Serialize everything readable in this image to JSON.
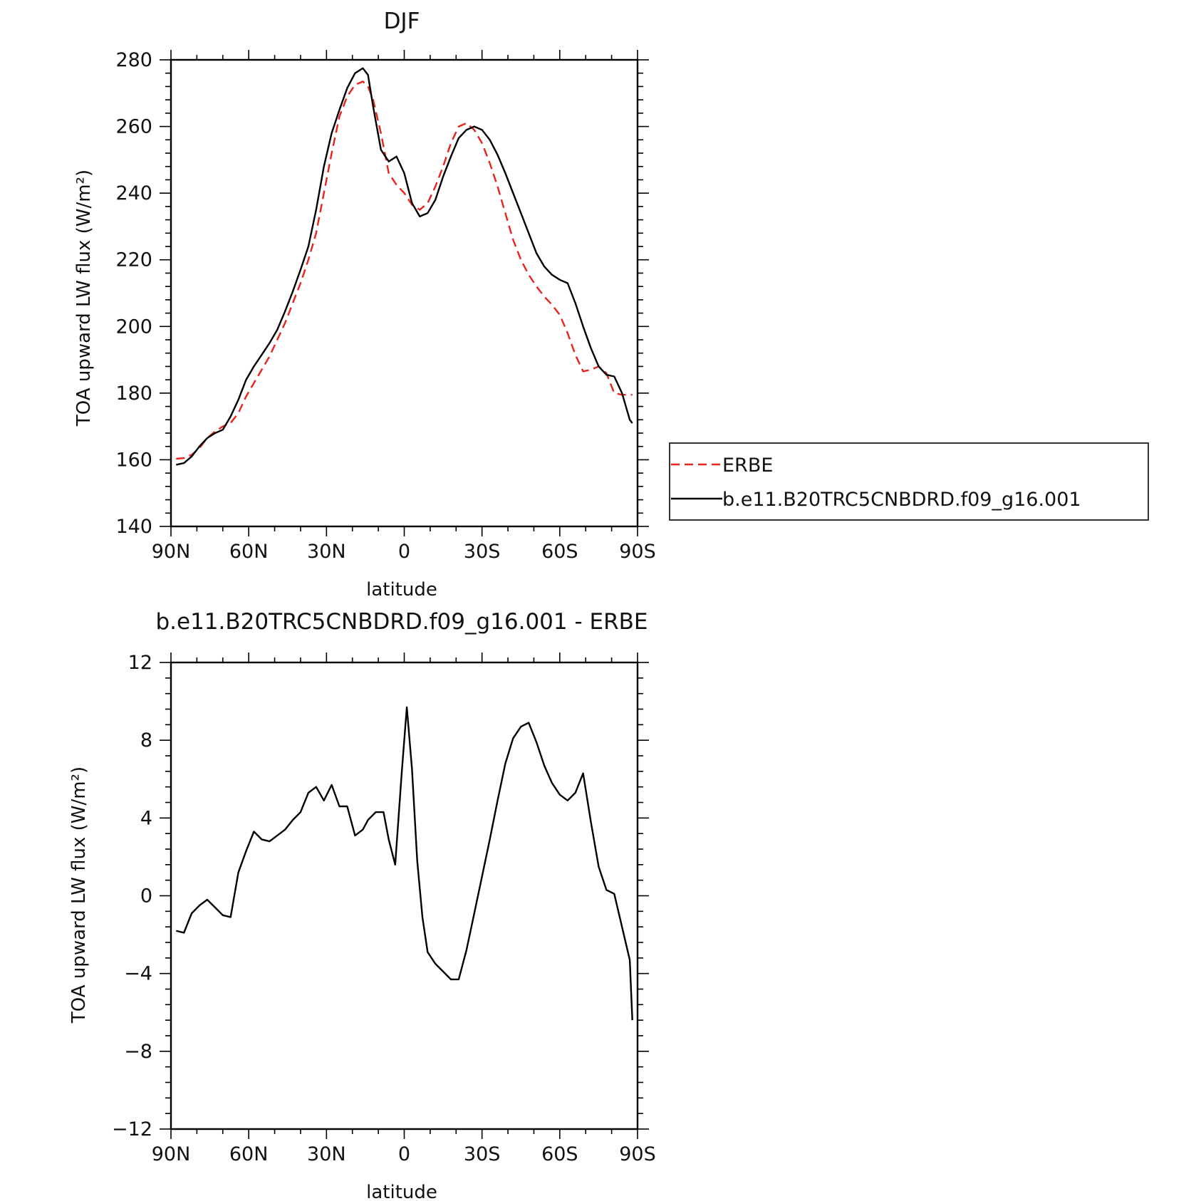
{
  "chart_data": [
    {
      "type": "line",
      "title": "DJF",
      "xlabel": "latitude",
      "ylabel": "TOA upward LW flux (W/m²)",
      "xlim": [
        -90,
        90
      ],
      "ylim": [
        140,
        280
      ],
      "x_tick_values": [
        -90,
        -60,
        -30,
        0,
        30,
        60,
        90
      ],
      "x_tick_labels": [
        "90N",
        "60N",
        "30N",
        "0",
        "30S",
        "60S",
        "90S"
      ],
      "y_ticks": [
        140,
        160,
        180,
        200,
        220,
        240,
        260,
        280
      ],
      "legend": "right",
      "series": [
        {
          "name": "ERBE",
          "color": "#e8241c",
          "dash": true,
          "x": [
            -88,
            -85,
            -82,
            -79,
            -76,
            -73,
            -70,
            -67,
            -64,
            -61,
            -58,
            -55,
            -52,
            -49,
            -46,
            -43,
            -40,
            -37,
            -34,
            -31,
            -28,
            -25,
            -22,
            -19,
            -16,
            -14,
            -12,
            -9,
            -6,
            -3,
            0,
            3,
            6,
            9,
            12,
            15,
            18,
            21,
            24,
            27,
            30,
            33,
            36,
            39,
            42,
            45,
            48,
            51,
            54,
            57,
            60,
            63,
            66,
            69,
            72,
            75,
            78,
            81,
            84,
            87,
            88
          ],
          "y": [
            160.3,
            160.5,
            161.5,
            163.5,
            166.5,
            168.5,
            170,
            171,
            174,
            179,
            183,
            187,
            191,
            196,
            201,
            207,
            213,
            220,
            228,
            240,
            252,
            263,
            269,
            272.5,
            273.5,
            272,
            268,
            258,
            246,
            242.5,
            240,
            236.5,
            235,
            237,
            242,
            248,
            255,
            260,
            261,
            259,
            255,
            249,
            242,
            234,
            226,
            220,
            215.5,
            212,
            209,
            206.5,
            203.5,
            198,
            191.5,
            186.5,
            187,
            188,
            186,
            180,
            179.5,
            179.5,
            179.5
          ]
        },
        {
          "name": "b.e11.B20TRC5CNBDRD.f09_g16.001",
          "color": "#000000",
          "dash": false,
          "x": [
            -88,
            -85,
            -82,
            -79,
            -76,
            -73,
            -70,
            -67,
            -64,
            -61,
            -58,
            -55,
            -52,
            -49,
            -46,
            -43,
            -40,
            -37,
            -34,
            -31,
            -28,
            -25,
            -22,
            -19,
            -16,
            -14,
            -12,
            -9,
            -6,
            -3,
            0,
            3,
            6,
            9,
            12,
            15,
            18,
            21,
            24,
            27,
            30,
            33,
            36,
            39,
            42,
            45,
            48,
            51,
            54,
            57,
            60,
            63,
            66,
            69,
            72,
            75,
            78,
            81,
            84,
            87,
            88
          ],
          "y": [
            158.5,
            159,
            161,
            164,
            166.5,
            168,
            169,
            173,
            178,
            184,
            188,
            191.5,
            195,
            199,
            204.5,
            210.5,
            217,
            224,
            235,
            248,
            258,
            265,
            271.5,
            276,
            277.5,
            275.5,
            266,
            253,
            249.5,
            251,
            246,
            237,
            233,
            234,
            238,
            245,
            251,
            256.5,
            259,
            260,
            259,
            256,
            251.5,
            246,
            240,
            234,
            228,
            222,
            218,
            215.5,
            214,
            213,
            207,
            200,
            193.5,
            188,
            185.5,
            185,
            180,
            172,
            171
          ]
        }
      ]
    },
    {
      "type": "line",
      "title": "b.e11.B20TRC5CNBDRD.f09_g16.001 - ERBE",
      "xlabel": "latitude",
      "ylabel": "TOA upward LW flux (W/m²)",
      "xlim": [
        -90,
        90
      ],
      "ylim": [
        -12,
        12
      ],
      "x_tick_values": [
        -90,
        -60,
        -30,
        0,
        30,
        60,
        90
      ],
      "x_tick_labels": [
        "90N",
        "60N",
        "30N",
        "0",
        "30S",
        "60S",
        "90S"
      ],
      "y_ticks": [
        -12,
        -8,
        -4,
        0,
        4,
        8,
        12
      ],
      "y_tick_labels": [
        "−12",
        "−8",
        "−4",
        "0",
        "4",
        "8",
        "12"
      ],
      "series": [
        {
          "color": "#000000",
          "dash": false,
          "x": [
            -88,
            -85,
            -82,
            -79,
            -76,
            -73,
            -70,
            -67,
            -64,
            -61,
            -58,
            -55,
            -52,
            -49,
            -46,
            -43,
            -40,
            -37,
            -34,
            -31,
            -28,
            -25,
            -22,
            -19,
            -16,
            -14,
            -11,
            -8,
            -6,
            -3.5,
            -1,
            1,
            3,
            5,
            7,
            9,
            12,
            15,
            18,
            21,
            24,
            27,
            30,
            33,
            36,
            39,
            42,
            45,
            48,
            51,
            54,
            57,
            60,
            63,
            66,
            69,
            72,
            75,
            78,
            81,
            84,
            87,
            88
          ],
          "y": [
            -1.8,
            -1.9,
            -0.9,
            -0.5,
            -0.2,
            -0.6,
            -1.0,
            -1.1,
            1.2,
            2.3,
            3.3,
            2.9,
            2.8,
            3.1,
            3.4,
            3.9,
            4.3,
            5.3,
            5.6,
            4.9,
            5.7,
            4.6,
            4.6,
            3.1,
            3.4,
            3.9,
            4.3,
            4.3,
            2.9,
            1.6,
            6.3,
            9.7,
            6.5,
            1.8,
            -1.1,
            -2.9,
            -3.5,
            -3.9,
            -4.3,
            -4.3,
            -2.8,
            -0.9,
            1.0,
            2.9,
            4.9,
            6.8,
            8.1,
            8.7,
            8.9,
            7.9,
            6.7,
            5.8,
            5.2,
            4.9,
            5.3,
            6.3,
            3.8,
            1.5,
            0.3,
            0.1,
            -1.6,
            -3.3,
            -6.4
          ]
        }
      ]
    }
  ]
}
